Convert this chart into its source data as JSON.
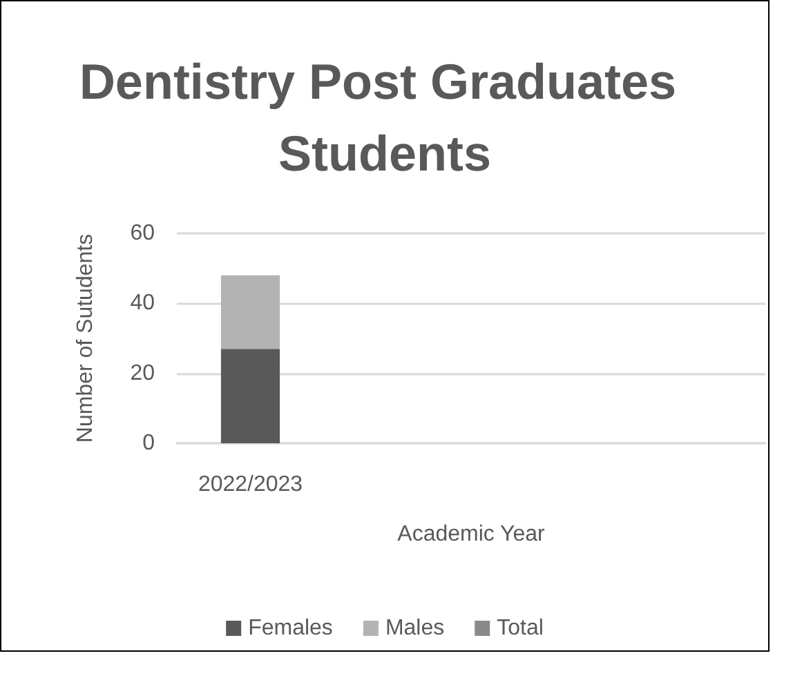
{
  "chart_data": {
    "type": "bar",
    "title": "Dentistry Post Graduates Students",
    "xlabel": "Academic Year",
    "ylabel": "Number of Sutudents",
    "categories": [
      "2022/2023",
      null,
      null,
      null
    ],
    "series": [
      {
        "name": "Females",
        "color": "#595959",
        "values": [
          27,
          null,
          null,
          null
        ]
      },
      {
        "name": "Males",
        "color": "#b3b3b3",
        "values": [
          21,
          null,
          null,
          null
        ]
      },
      {
        "name": "Total",
        "color": "#8a8a8a",
        "values": [
          null,
          null,
          null,
          null
        ]
      }
    ],
    "stacked": true,
    "ylim": [
      0,
      60
    ],
    "yticks": [
      0,
      20,
      40,
      60
    ],
    "grid": "y",
    "legend": "bottom"
  }
}
